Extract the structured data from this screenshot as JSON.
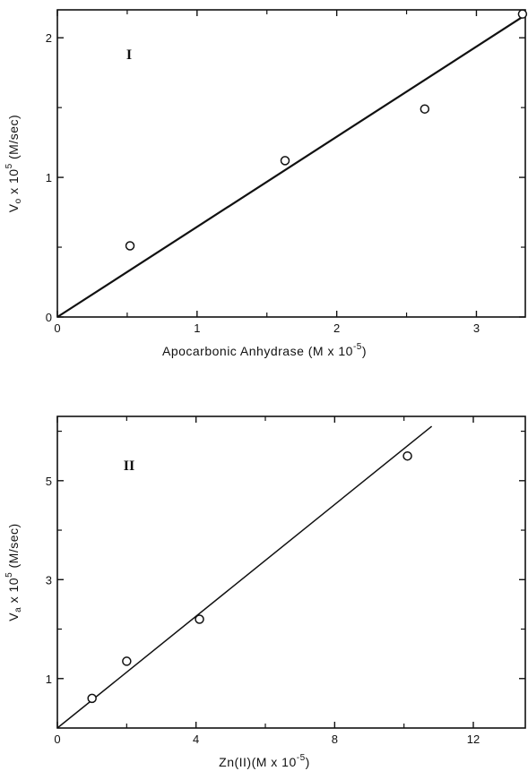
{
  "chart_data": [
    {
      "type": "scatter",
      "panel_label": "I",
      "xlabel": "Apocarbonic Anhydrase (M x 10",
      "xlabel_exp": "-5",
      "xlabel_close": ")",
      "ylabel": "V",
      "ylabel_sub": "o",
      "ylabel_mid": " x 10",
      "ylabel_exp": "5",
      "ylabel_tail": " (M/sec)",
      "xlim": [
        0,
        3.35
      ],
      "ylim": [
        0,
        2.2
      ],
      "xticks": [
        0,
        1,
        2,
        3
      ],
      "xtick_labels": [
        "0",
        "1",
        "2",
        "3"
      ],
      "yticks": [
        0,
        1,
        2
      ],
      "ytick_labels": [
        "0",
        "1",
        "2"
      ],
      "minor_xticks": [
        0.5,
        1.5,
        2.5
      ],
      "minor_yticks": [
        0.5,
        1.5
      ],
      "points": [
        {
          "x": 0.52,
          "y": 0.51
        },
        {
          "x": 1.63,
          "y": 1.12
        },
        {
          "x": 2.63,
          "y": 1.49
        },
        {
          "x": 3.33,
          "y": 2.17
        }
      ],
      "fit_line": {
        "x": [
          0,
          3.33
        ],
        "y": [
          0,
          2.15
        ]
      }
    },
    {
      "type": "scatter",
      "panel_label": "II",
      "xlabel": "Zn(II)(M x 10",
      "xlabel_exp": "-5",
      "xlabel_close": ")",
      "ylabel": "V",
      "ylabel_sub": "a",
      "ylabel_mid": " x 10",
      "ylabel_exp": "5",
      "ylabel_tail": " (M/sec)",
      "xlim": [
        0,
        13.5
      ],
      "ylim": [
        0,
        6.3
      ],
      "xticks": [
        0,
        4,
        8,
        12
      ],
      "xtick_labels": [
        "0",
        "4",
        "8",
        "12"
      ],
      "yticks": [
        1,
        3,
        5
      ],
      "ytick_labels": [
        "1",
        "3",
        "5"
      ],
      "minor_xticks": [
        2,
        6,
        10
      ],
      "minor_yticks": [
        2,
        4,
        6
      ],
      "points": [
        {
          "x": 1.0,
          "y": 0.6
        },
        {
          "x": 2.0,
          "y": 1.35
        },
        {
          "x": 4.1,
          "y": 2.2
        },
        {
          "x": 10.1,
          "y": 5.5
        }
      ],
      "fit_line": {
        "x": [
          0,
          10.8
        ],
        "y": [
          0,
          6.1
        ]
      }
    }
  ]
}
